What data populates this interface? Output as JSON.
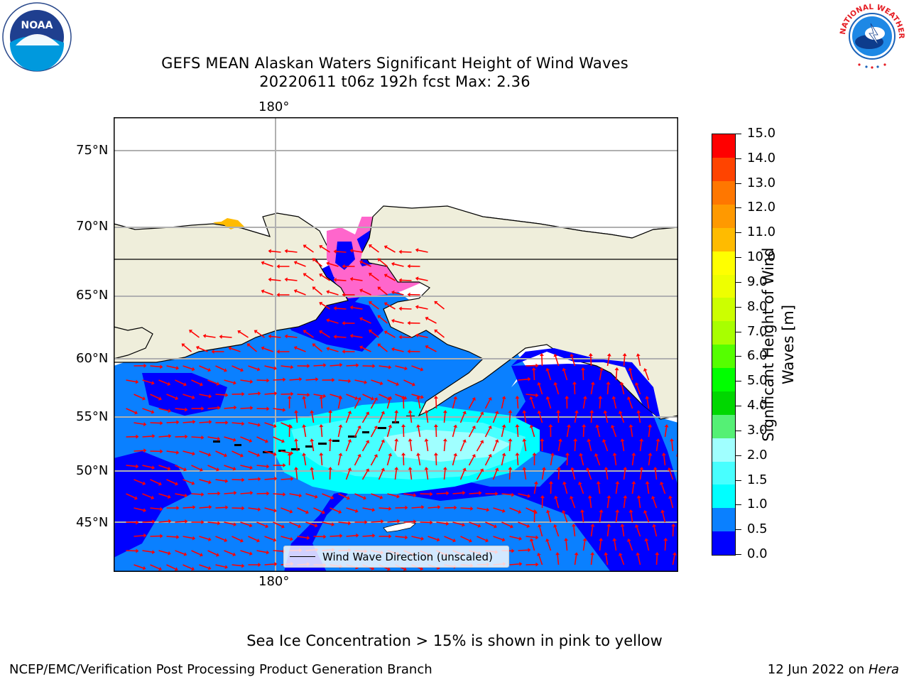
{
  "title": {
    "line1": "GEFS MEAN Alaskan Waters Significant Height of Wind Waves",
    "line2": "20220611 t06z 192h fcst   Max: 2.36"
  },
  "logos": {
    "noaa_text": "NOAA",
    "nws_text": "NATIONAL WEATHER SERVICE"
  },
  "map": {
    "lon_labels": [
      "180°",
      "180°"
    ],
    "lat_labels": [
      "75°N",
      "70°N",
      "65°N",
      "60°N",
      "55°N",
      "50°N",
      "45°N"
    ],
    "legend_label": "Wind Wave Direction (unscaled)",
    "colors": {
      "land": "#efeedb",
      "ice": "#ff66cc",
      "wave_low": "#0000ff",
      "wave_mid": "#0a80ff",
      "wave_hi": "#00ffff",
      "wave_top": "#a0ffff",
      "arrows": "#ff0000",
      "grid": "#b0b0b0"
    }
  },
  "colorbar": {
    "label": "Significant Height of Wind Waves [m]",
    "ticks": [
      "15.0",
      "14.0",
      "13.0",
      "12.0",
      "11.0",
      "10.0",
      "9.0",
      "8.0",
      "7.0",
      "6.0",
      "5.0",
      "4.0",
      "3.0",
      "2.0",
      "1.5",
      "1.0",
      "0.5",
      "0.0"
    ],
    "colors": [
      "#0000ff",
      "#0a80ff",
      "#00ffff",
      "#48ffff",
      "#a0ffff",
      "#55f075",
      "#00d700",
      "#00ff00",
      "#55ff00",
      "#a8ff00",
      "#ccff00",
      "#eeff00",
      "#ffff00",
      "#ffbb00",
      "#ff9900",
      "#ff7700",
      "#ff4400",
      "#ff0000"
    ]
  },
  "annotation": "Sea Ice Concentration > 15% is shown in pink to yellow",
  "footer": {
    "left": "NCEP/EMC/Verification Post Processing Product Generation Branch",
    "date": "12 Jun 2022 on ",
    "machine": "Hera"
  }
}
